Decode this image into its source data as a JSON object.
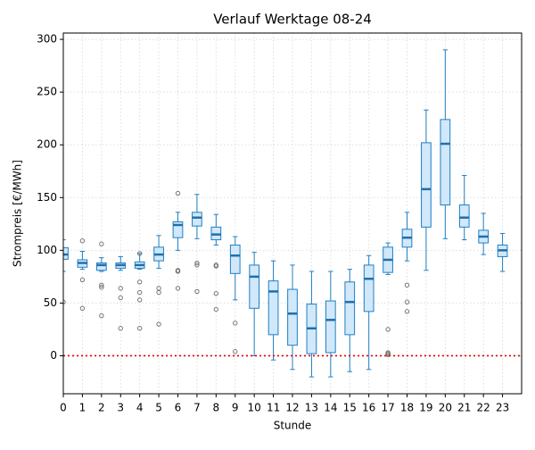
{
  "chart_data": {
    "type": "box",
    "title": "Verlauf Werktage 08-24",
    "xlabel": "Stunde",
    "ylabel": "Strompreis [€/MWh]",
    "x": [
      0,
      1,
      2,
      3,
      4,
      5,
      6,
      7,
      8,
      9,
      10,
      11,
      12,
      13,
      14,
      15,
      16,
      17,
      18,
      19,
      20,
      21,
      22,
      23
    ],
    "whislo": [
      80,
      82,
      80,
      81,
      82,
      83,
      100,
      111,
      105,
      53,
      0,
      -4,
      -13,
      -20,
      -20,
      -15,
      -13,
      77,
      90,
      81,
      111,
      110,
      96,
      80
    ],
    "q1": [
      91.5,
      84,
      81,
      83,
      83,
      90,
      112,
      123,
      110,
      78,
      45,
      20,
      10,
      2,
      3,
      20,
      42,
      79,
      103,
      122,
      143,
      122,
      107,
      94
    ],
    "med": [
      96,
      88,
      86,
      86,
      86,
      96,
      124,
      131,
      115,
      95,
      75,
      61,
      40,
      26,
      34,
      51,
      73,
      91,
      112,
      158,
      201,
      131,
      113,
      100
    ],
    "q3": [
      102.5,
      91,
      88,
      88,
      89,
      103,
      127,
      136,
      122,
      105,
      86,
      71,
      63,
      49,
      52,
      70,
      86,
      103,
      120,
      202,
      224,
      143,
      119,
      105
    ],
    "whishi": [
      110,
      99,
      93,
      94,
      97,
      114,
      136,
      153,
      134,
      113,
      98,
      90,
      86,
      80,
      80,
      82,
      95,
      107,
      136,
      233,
      290,
      171,
      135,
      116
    ],
    "fliers": [
      [
        51
      ],
      [
        109,
        72,
        45
      ],
      [
        106,
        67,
        65,
        38
      ],
      [
        64,
        55,
        26
      ],
      [
        97,
        70,
        60,
        53,
        26
      ],
      [
        64,
        60,
        30
      ],
      [
        154,
        81,
        80,
        64
      ],
      [
        88,
        86,
        61
      ],
      [
        86,
        85,
        59,
        44
      ],
      [
        31,
        4
      ],
      [],
      [],
      [],
      [],
      [],
      [],
      [],
      [
        25,
        3,
        2,
        1
      ],
      [
        67,
        51,
        42
      ],
      [],
      [],
      [],
      [],
      []
    ],
    "box_color": "#1f7fc4",
    "box_fill": "#d0e8fa",
    "median_color": "#1f6fad",
    "flier_color": "#555555",
    "reference_line": {
      "value": 0,
      "color": "#e00000"
    },
    "xlim": [
      0,
      24
    ],
    "xticks": [
      0,
      1,
      2,
      3,
      4,
      5,
      6,
      7,
      8,
      9,
      10,
      11,
      12,
      13,
      14,
      15,
      16,
      17,
      18,
      19,
      20,
      21,
      22,
      23
    ],
    "ylim": [
      -36,
      306
    ],
    "yticks": [
      0,
      50,
      100,
      150,
      200,
      250,
      300
    ],
    "grid": true
  }
}
